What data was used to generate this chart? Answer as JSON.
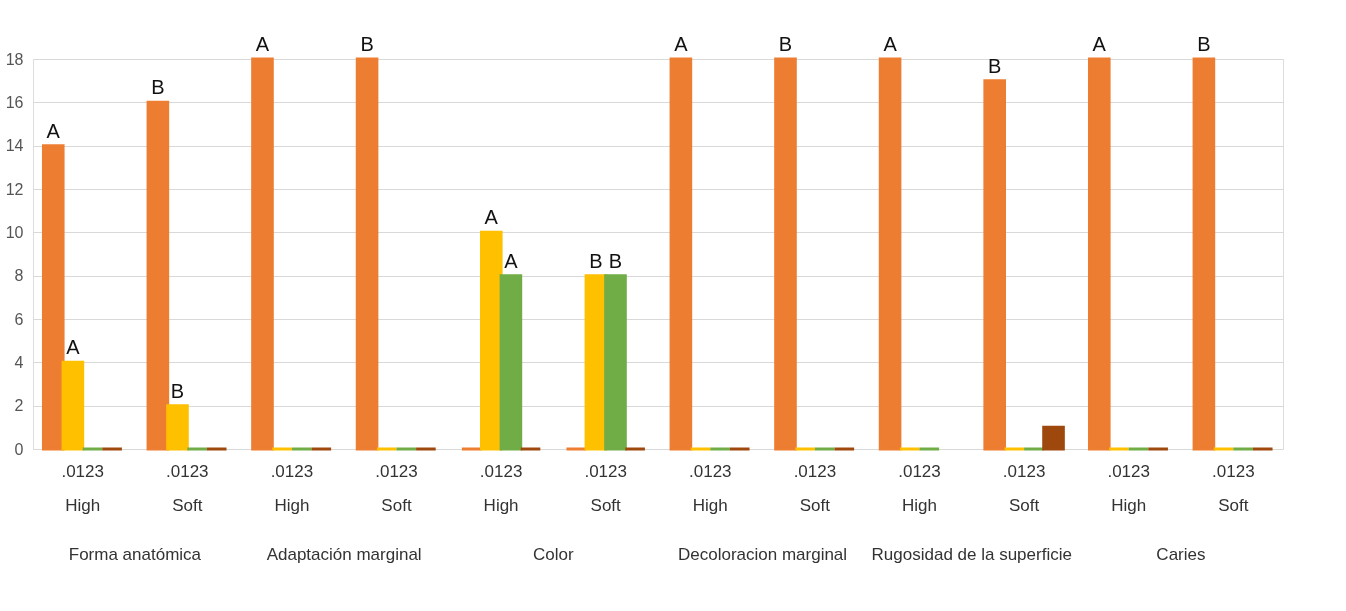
{
  "chart_data": {
    "type": "bar",
    "categories": [
      ".0123\nHigh",
      ".0123\nSoft",
      ".0123\nHigh",
      ".0123\nSoft",
      ".0123\nHigh",
      ".0123\nSoft",
      ".0123\nHigh",
      ".0123\nSoft",
      ".0123\nHigh",
      ".0123\nSoft",
      ".0123\nHigh",
      ".0123\nSoft"
    ],
    "series": [
      {
        "color": "#ed7d31",
        "values": [
          14,
          16,
          18,
          18,
          0,
          0,
          18,
          18,
          18,
          17,
          18,
          18
        ],
        "value_labels": [
          "A",
          "B",
          "A",
          "B",
          null,
          null,
          "A",
          "B",
          "A",
          "B",
          "A",
          "B"
        ]
      },
      {
        "color": "#ffc000",
        "values": [
          4,
          2,
          0,
          0,
          10,
          8,
          0,
          0,
          0,
          0,
          0,
          0
        ],
        "value_labels": [
          "A",
          "B",
          null,
          null,
          "A",
          "B",
          null,
          null,
          null,
          null,
          null,
          null
        ]
      },
      {
        "color": "#70ad47",
        "values": [
          0,
          0,
          0,
          0,
          8,
          8,
          0,
          0,
          0,
          0,
          0,
          0
        ],
        "value_labels": [
          null,
          null,
          null,
          null,
          "A",
          "B",
          null,
          null,
          null,
          null,
          null,
          null
        ]
      },
      {
        "color": "#9e480e",
        "values": [
          0,
          0,
          0,
          0,
          0,
          0,
          0,
          0,
          null,
          1,
          0,
          0
        ]
      }
    ],
    "annotations": [
      "Forma anatómica",
      "Adaptación marginal",
      "Color",
      "Decoloracion marginal",
      "Rugosidad de la superficie",
      "Caries"
    ],
    "ylim": [
      0,
      18
    ],
    "yticks": [
      0,
      2,
      4,
      6,
      8,
      10,
      12,
      14,
      16,
      18
    ],
    "grid": "y",
    "legend": false
  }
}
